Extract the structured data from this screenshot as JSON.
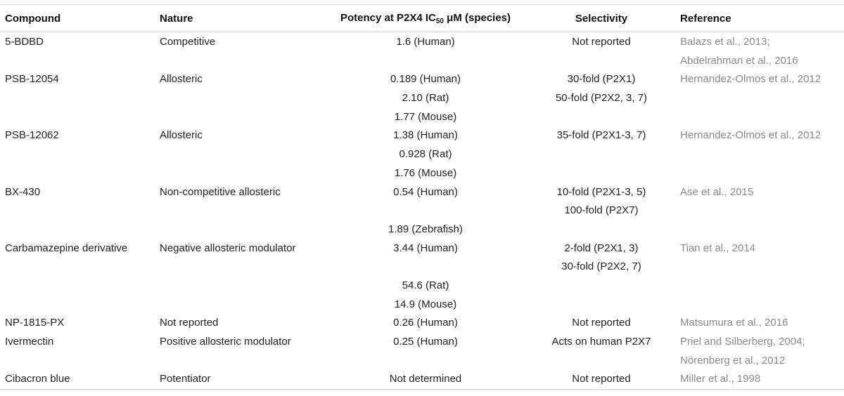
{
  "table": {
    "headers": {
      "compound": "Compound",
      "nature": "Nature",
      "potency_prefix": "Potency at P2X4 IC",
      "potency_sub": "50",
      "potency_suffix": " μM (species)",
      "selectivity": "Selectivity",
      "reference": "Reference"
    },
    "rows": [
      {
        "compound": "5-BDBD",
        "nature": "Competitive",
        "potency": [
          "1.6 (Human)"
        ],
        "selectivity": [
          "Not reported"
        ],
        "reference": [
          "Balazs et al., 2013;",
          "Abdelrahman et al., 2016"
        ]
      },
      {
        "compound": "PSB-12054",
        "nature": "Allosteric",
        "potency": [
          "0.189 (Human)",
          "2.10 (Rat)",
          "1.77 (Mouse)"
        ],
        "selectivity": [
          "30-fold (P2X1)",
          "50-fold (P2X2, 3, 7)"
        ],
        "reference": [
          "Hernandez-Olmos et al., 2012"
        ]
      },
      {
        "compound": "PSB-12062",
        "nature": "Allosteric",
        "potency": [
          "1.38 (Human)",
          "0.928 (Rat)",
          "1.76 (Mouse)"
        ],
        "selectivity": [
          "35-fold (P2X1-3, 7)"
        ],
        "reference": [
          "Hernandez-Olmos et al., 2012"
        ]
      },
      {
        "compound": "BX-430",
        "nature": "Non-competitive allosteric",
        "potency": [
          "0.54 (Human)",
          "",
          "1.89 (Zebrafish)"
        ],
        "selectivity": [
          "10-fold (P2X1-3, 5)",
          "100-fold (P2X7)"
        ],
        "reference": [
          "Ase et al., 2015"
        ]
      },
      {
        "compound": "Carbamazepine derivative",
        "nature": "Negative allosteric modulator",
        "potency": [
          "3.44 (Human)",
          "",
          "54.6 (Rat)",
          "14.9 (Mouse)"
        ],
        "selectivity": [
          "2-fold (P2X1, 3)",
          "30-fold (P2X2, 7)"
        ],
        "reference": [
          "Tian et al., 2014"
        ]
      },
      {
        "compound": "NP-1815-PX",
        "nature": "Not reported",
        "potency": [
          "0.26 (Human)"
        ],
        "selectivity": [
          "Not reported"
        ],
        "reference": [
          "Matsumura et al., 2016"
        ]
      },
      {
        "compound": "Ivermectin",
        "nature": "Positive allosteric modulator",
        "potency": [
          "0.25 (Human)"
        ],
        "selectivity": [
          "Acts on human P2X7"
        ],
        "reference": [
          "Priel and Silberberg, 2004;",
          "Nörenberg et al., 2012"
        ]
      },
      {
        "compound": "Cibacron blue",
        "nature": "Potentiator",
        "potency": [
          "Not determined"
        ],
        "selectivity": [
          "Not reported"
        ],
        "reference": [
          "Miller et al., 1998"
        ]
      }
    ]
  }
}
